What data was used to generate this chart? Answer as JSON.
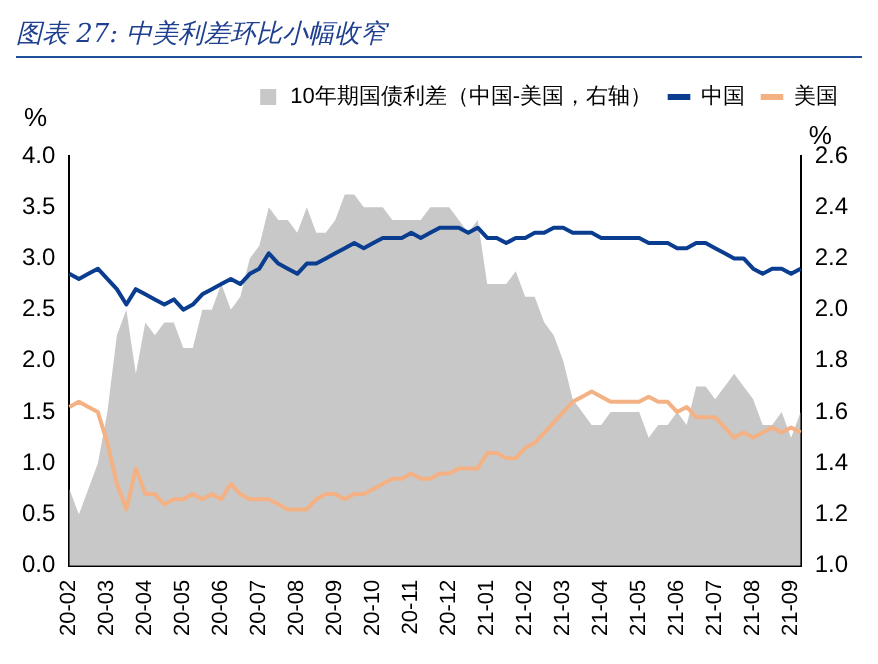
{
  "chart_data": {
    "type": "line",
    "title": "图表 27:  中美利差环比小幅收窄",
    "ylabel": "%",
    "y2label": "%",
    "legend": "top",
    "marker": "none",
    "categories": [
      "20-02",
      null,
      null,
      null,
      "20-03",
      null,
      null,
      null,
      "20-04",
      null,
      null,
      null,
      "20-05",
      null,
      null,
      null,
      "20-06",
      null,
      null,
      null,
      "20-07",
      null,
      null,
      null,
      "20-08",
      null,
      null,
      null,
      "20-09",
      null,
      null,
      null,
      "20-10",
      null,
      null,
      null,
      "20-11",
      null,
      null,
      null,
      "20-12",
      null,
      null,
      null,
      "21-01",
      null,
      null,
      null,
      "21-02",
      null,
      null,
      null,
      "21-03",
      null,
      null,
      null,
      "21-04",
      null,
      null,
      null,
      "21-05",
      null,
      null,
      null,
      "21-06",
      null,
      null,
      null,
      "21-07",
      null,
      null,
      null,
      "21-08",
      null,
      null,
      null,
      "21-09",
      null
    ],
    "ylim": [
      0,
      4
    ],
    "yticks": [
      {
        "value": 0,
        "label": "0.0"
      },
      {
        "value": 0.5,
        "label": "0.5"
      },
      {
        "value": 1,
        "label": "1.0"
      },
      {
        "value": 1.5,
        "label": "1.5"
      },
      {
        "value": 2,
        "label": "2.0"
      },
      {
        "value": 2.5,
        "label": "2.5"
      },
      {
        "value": 3,
        "label": "3.0"
      },
      {
        "value": 3.5,
        "label": "3.5"
      },
      {
        "value": 4,
        "label": "4.0"
      }
    ],
    "y2lim": [
      1,
      2.6
    ],
    "y2ticks": [
      {
        "value": 1,
        "label": "1.0"
      },
      1.2,
      1.4,
      1.6,
      1.8,
      {
        "value": 2,
        "label": "2.0"
      },
      2.2,
      2.4,
      2.6
    ],
    "series": [
      {
        "name": "10年期国债利差（中国-美国，右轴）",
        "type": "area",
        "axis": "y2",
        "color": "#c8c8c8",
        "values": [
          1.3,
          1.2,
          1.3,
          1.4,
          1.6,
          1.9,
          2.0,
          1.75,
          1.95,
          1.9,
          1.95,
          1.95,
          1.85,
          1.85,
          2.0,
          2.0,
          2.1,
          2.0,
          2.05,
          2.2,
          2.25,
          2.4,
          2.35,
          2.35,
          2.3,
          2.4,
          2.3,
          2.3,
          2.35,
          2.45,
          2.45,
          2.4,
          2.4,
          2.4,
          2.35,
          2.35,
          2.35,
          2.35,
          2.4,
          2.4,
          2.4,
          2.35,
          2.3,
          2.35,
          2.1,
          2.1,
          2.1,
          2.15,
          2.05,
          2.05,
          1.95,
          1.9,
          1.8,
          1.65,
          1.6,
          1.55,
          1.55,
          1.6,
          1.6,
          1.6,
          1.6,
          1.5,
          1.55,
          1.55,
          1.6,
          1.55,
          1.7,
          1.7,
          1.65,
          1.7,
          1.75,
          1.7,
          1.65,
          1.55,
          1.55,
          1.6,
          1.5,
          1.6
        ]
      },
      {
        "name": "中国",
        "type": "line",
        "color": "#0a3d8f",
        "values": [
          2.85,
          2.8,
          2.85,
          2.9,
          2.8,
          2.7,
          2.55,
          2.7,
          2.65,
          2.6,
          2.55,
          2.6,
          2.5,
          2.55,
          2.65,
          2.7,
          2.75,
          2.8,
          2.75,
          2.85,
          2.9,
          3.05,
          2.95,
          2.9,
          2.85,
          2.95,
          2.95,
          3.0,
          3.05,
          3.1,
          3.15,
          3.1,
          3.15,
          3.2,
          3.2,
          3.2,
          3.25,
          3.2,
          3.25,
          3.3,
          3.3,
          3.3,
          3.25,
          3.3,
          3.2,
          3.2,
          3.15,
          3.2,
          3.2,
          3.25,
          3.25,
          3.3,
          3.3,
          3.25,
          3.25,
          3.25,
          3.2,
          3.2,
          3.2,
          3.2,
          3.2,
          3.15,
          3.15,
          3.15,
          3.1,
          3.1,
          3.15,
          3.15,
          3.1,
          3.05,
          3.0,
          3.0,
          2.9,
          2.85,
          2.9,
          2.9,
          2.85,
          2.9
        ]
      },
      {
        "name": "美国",
        "type": "line",
        "color": "#f4b183",
        "values": [
          1.55,
          1.6,
          1.55,
          1.5,
          1.2,
          0.8,
          0.55,
          0.95,
          0.7,
          0.7,
          0.6,
          0.65,
          0.65,
          0.7,
          0.65,
          0.7,
          0.65,
          0.8,
          0.7,
          0.65,
          0.65,
          0.65,
          0.6,
          0.55,
          0.55,
          0.55,
          0.65,
          0.7,
          0.7,
          0.65,
          0.7,
          0.7,
          0.75,
          0.8,
          0.85,
          0.85,
          0.9,
          0.85,
          0.85,
          0.9,
          0.9,
          0.95,
          0.95,
          0.95,
          1.1,
          1.1,
          1.05,
          1.05,
          1.15,
          1.2,
          1.3,
          1.4,
          1.5,
          1.6,
          1.65,
          1.7,
          1.65,
          1.6,
          1.6,
          1.6,
          1.6,
          1.65,
          1.6,
          1.6,
          1.5,
          1.55,
          1.45,
          1.45,
          1.45,
          1.35,
          1.25,
          1.3,
          1.25,
          1.3,
          1.35,
          1.3,
          1.35,
          1.3
        ]
      }
    ]
  }
}
